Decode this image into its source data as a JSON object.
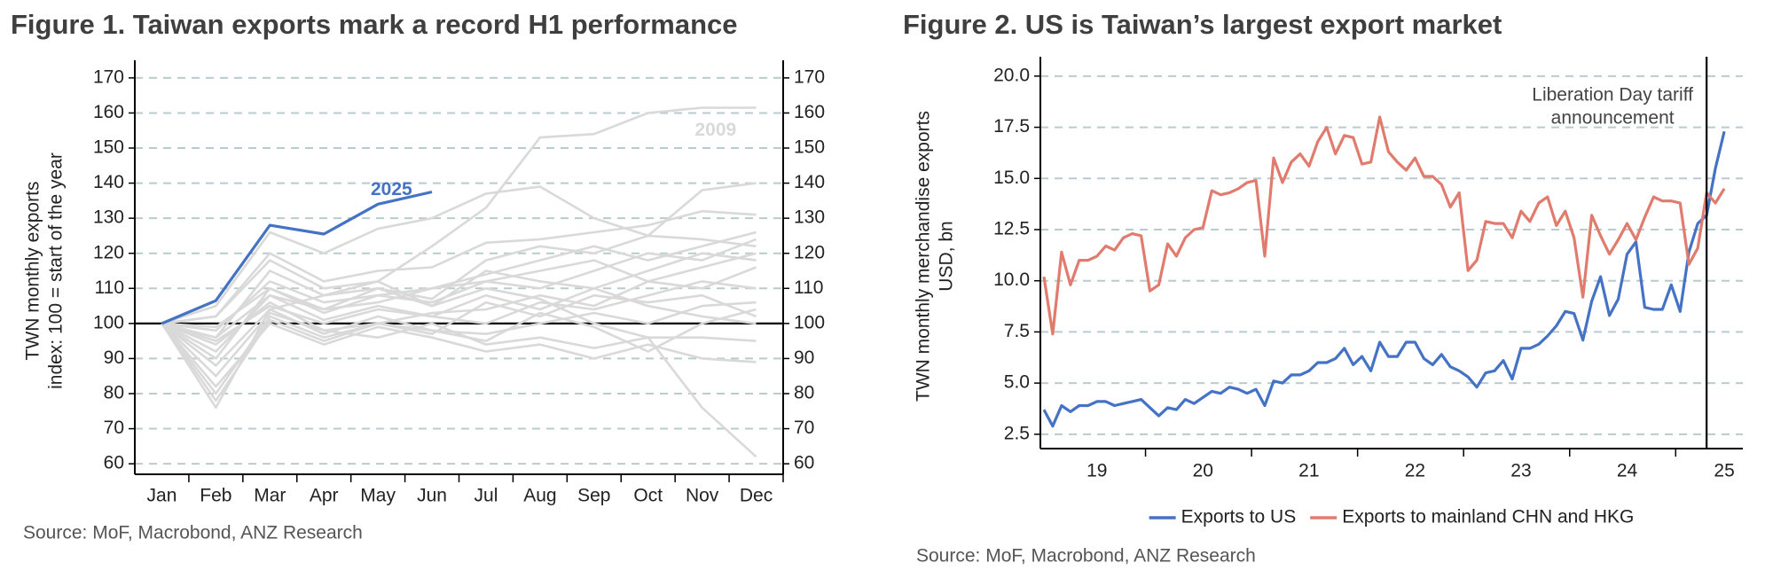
{
  "chart_data": [
    {
      "type": "line",
      "title": "Figure 1.  Taiwan exports mark a record H1 performance",
      "ylabel": [
        "TWN monthly exports",
        "index: 100 = start of the year"
      ],
      "source": "Source: MoF, Macrobond, ANZ Research",
      "categories": [
        "Jan",
        "Feb",
        "Mar",
        "Apr",
        "May",
        "Jun",
        "Jul",
        "Aug",
        "Sep",
        "Oct",
        "Nov",
        "Dec"
      ],
      "ylim": [
        57,
        173
      ],
      "yticks": [
        60,
        70,
        80,
        90,
        100,
        110,
        120,
        130,
        140,
        150,
        160,
        170
      ],
      "right_axis": true,
      "grid": true,
      "reference_line": 100,
      "series": [
        {
          "color": "#d9d9d9",
          "values": [
            100,
            96,
            108,
            104,
            110,
            105,
            110,
            107,
            100,
            96,
            76,
            62
          ]
        },
        {
          "color": "#d9d9d9",
          "values": [
            100,
            105,
            126,
            120,
            127,
            130,
            137,
            139,
            130,
            125,
            138,
            140
          ]
        },
        {
          "color": "#d9d9d9",
          "values": [
            100,
            102,
            120,
            112,
            115,
            116,
            123,
            124,
            126,
            128,
            132,
            131
          ]
        },
        {
          "color": "#d9d9d9",
          "values": [
            100,
            98,
            112,
            106,
            108,
            110,
            114,
            118,
            122,
            118,
            122,
            126
          ]
        },
        {
          "color": "#d9d9d9",
          "values": [
            100,
            90,
            110,
            104,
            106,
            110,
            112,
            110,
            115,
            120,
            118,
            124
          ]
        },
        {
          "color": "#d9d9d9",
          "values": [
            100,
            95,
            105,
            100,
            104,
            102,
            108,
            104,
            110,
            115,
            120,
            118
          ]
        },
        {
          "color": "#d9d9d9",
          "values": [
            100,
            85,
            103,
            98,
            100,
            103,
            104,
            108,
            105,
            112,
            110,
            116
          ]
        },
        {
          "color": "#d9d9d9",
          "values": [
            100,
            92,
            108,
            101,
            105,
            102,
            100,
            106,
            104,
            108,
            112,
            110
          ]
        },
        {
          "color": "#d9d9d9",
          "values": [
            100,
            80,
            102,
            96,
            100,
            98,
            97,
            100,
            103,
            100,
            105,
            106
          ]
        },
        {
          "color": "#d9d9d9",
          "values": [
            100,
            88,
            104,
            97,
            102,
            98,
            95,
            103,
            99,
            92,
            100,
            104
          ]
        },
        {
          "color": "#d9d9d9",
          "values": [
            100,
            94,
            106,
            98,
            96,
            100,
            94,
            96,
            93,
            96,
            96,
            95
          ]
        },
        {
          "color": "#d9d9d9",
          "values": [
            100,
            82,
            100,
            94,
            99,
            96,
            92,
            94,
            90,
            94,
            90,
            89
          ]
        },
        {
          "color": "#d9d9d9",
          "values": [
            100,
            99,
            110,
            103,
            108,
            106,
            112,
            115,
            118,
            112,
            116,
            120
          ]
        },
        {
          "color": "#d9d9d9",
          "values": [
            100,
            96,
            115,
            108,
            110,
            107,
            118,
            122,
            120,
            125,
            124,
            122
          ]
        },
        {
          "color": "#d9d9d9",
          "values": [
            100,
            78,
            101,
            95,
            100,
            97,
            106,
            102,
            108,
            106,
            108,
            102
          ]
        },
        {
          "color": "#d9d9d9",
          "values": [
            100,
            102,
            118,
            110,
            112,
            105,
            115,
            112,
            110,
            105,
            102,
            100
          ]
        },
        {
          "name": "2009",
          "color": "#d9d9d9",
          "values": [
            100,
            76,
            104,
            108,
            112,
            122,
            133,
            153,
            154,
            160,
            161.5,
            161.5
          ]
        },
        {
          "name": "2025",
          "color": "#4472c4",
          "values": [
            100,
            106.5,
            128,
            125.5,
            134,
            137.5,
            null,
            null,
            null,
            null,
            null,
            null
          ]
        }
      ]
    },
    {
      "type": "line",
      "title": "Figure 2.  US is Taiwan’s largest export market",
      "ylabel": [
        "TWN monthly merchandise exports",
        "USD, bn"
      ],
      "source": "Source: MoF, Macrobond, ANZ Research",
      "categories": [
        null,
        null,
        null,
        null,
        null,
        null,
        "19",
        null,
        null,
        null,
        null,
        null,
        null,
        null,
        null,
        null,
        null,
        null,
        "20",
        null,
        null,
        null,
        null,
        null,
        null,
        null,
        null,
        null,
        null,
        null,
        "21",
        null,
        null,
        null,
        null,
        null,
        null,
        null,
        null,
        null,
        null,
        null,
        "22",
        null,
        null,
        null,
        null,
        null,
        null,
        null,
        null,
        null,
        null,
        null,
        "23",
        null,
        null,
        null,
        null,
        null,
        null,
        null,
        null,
        null,
        null,
        null,
        "24",
        null,
        null,
        null,
        null,
        null,
        null,
        null,
        null,
        null,
        null,
        "25"
      ],
      "ylim": [
        1.8,
        20.6
      ],
      "yticks": [
        2.5,
        {
          "value": 5,
          "label": "5.0"
        },
        7.5,
        {
          "value": 10,
          "label": "10.0"
        },
        12.5,
        {
          "value": 15,
          "label": "15.0"
        },
        17.5,
        {
          "value": 20,
          "label": "20.0"
        }
      ],
      "grid": true,
      "legend": "bottom",
      "annotation": {
        "lines": [
          "Liberation Day tariff",
          "announcement"
        ],
        "at": 75
      },
      "series": [
        {
          "name": "Exports to US",
          "color": "#4472c4",
          "values": [
            3.7,
            2.9,
            3.9,
            3.6,
            3.9,
            3.9,
            4.1,
            4.1,
            3.9,
            4.0,
            4.1,
            4.2,
            3.8,
            3.4,
            3.8,
            3.7,
            4.2,
            4.0,
            4.3,
            4.6,
            4.5,
            4.8,
            4.7,
            4.5,
            4.7,
            3.9,
            5.1,
            5.0,
            5.4,
            5.4,
            5.6,
            6.0,
            6.0,
            6.2,
            6.7,
            5.9,
            6.3,
            5.6,
            7.0,
            6.3,
            6.3,
            7.0,
            7.0,
            6.2,
            5.9,
            6.4,
            5.8,
            5.6,
            5.3,
            4.8,
            5.5,
            5.6,
            6.1,
            5.2,
            6.7,
            6.7,
            6.9,
            7.3,
            7.8,
            8.5,
            8.4,
            7.1,
            9.0,
            10.2,
            8.3,
            9.1,
            11.3,
            11.9,
            8.7,
            8.6,
            8.6,
            9.8,
            8.5,
            11.4,
            12.8,
            13.2,
            15.5,
            17.3
          ]
        },
        {
          "name": "Exports to mainland CHN and HKG",
          "color": "#e07b6e",
          "values": [
            10.2,
            7.4,
            11.4,
            9.8,
            11.0,
            11.0,
            11.2,
            11.7,
            11.5,
            12.1,
            12.3,
            12.2,
            9.5,
            9.8,
            11.8,
            11.2,
            12.1,
            12.5,
            12.6,
            14.4,
            14.2,
            14.3,
            14.5,
            14.8,
            14.9,
            11.2,
            16.0,
            14.8,
            15.8,
            16.2,
            15.6,
            16.8,
            17.5,
            16.2,
            17.1,
            17.0,
            15.7,
            15.8,
            18.0,
            16.3,
            15.8,
            15.4,
            16.0,
            15.1,
            15.1,
            14.7,
            13.6,
            14.3,
            10.5,
            11.0,
            12.9,
            12.8,
            12.8,
            12.1,
            13.4,
            12.9,
            13.8,
            14.1,
            12.7,
            13.4,
            12.1,
            9.2,
            13.2,
            12.2,
            11.3,
            12.0,
            12.8,
            12.0,
            13.1,
            14.1,
            13.9,
            13.9,
            13.8,
            10.8,
            11.6,
            14.3,
            13.8,
            14.5
          ]
        }
      ]
    }
  ]
}
